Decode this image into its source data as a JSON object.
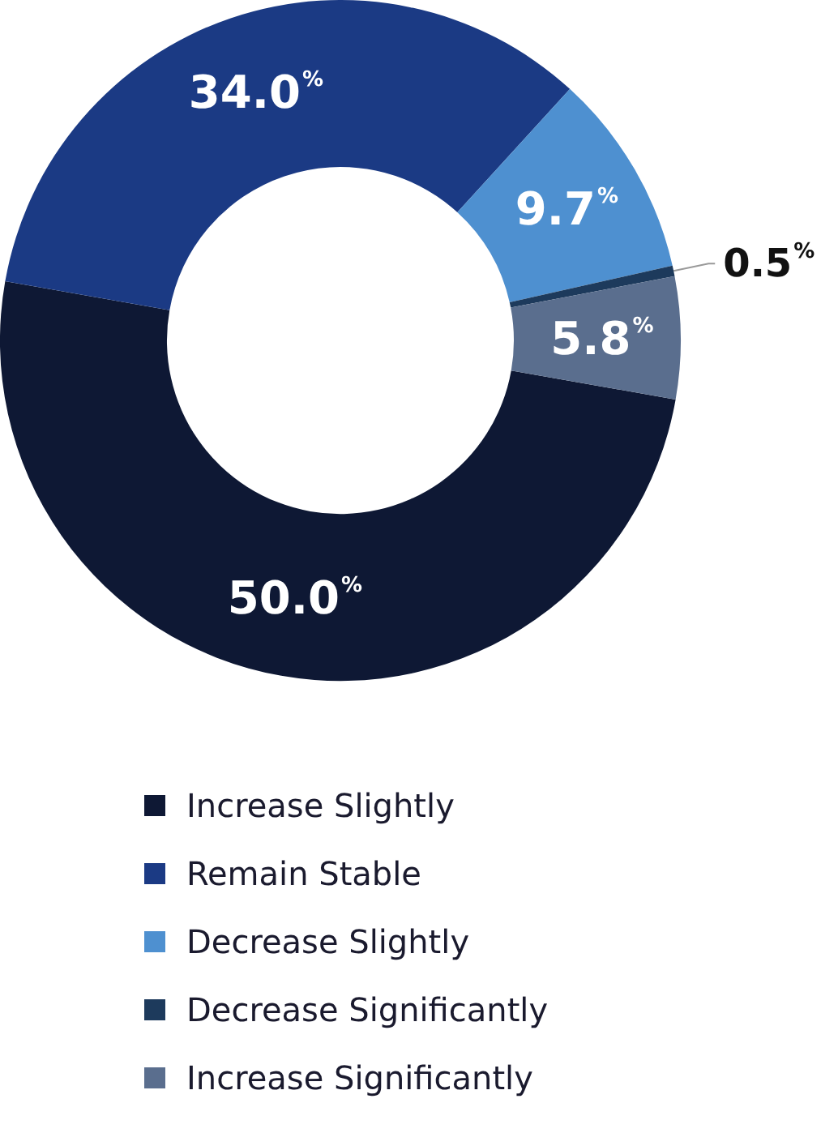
{
  "chart_data": {
    "type": "donut",
    "categories": [
      "Increase Slightly",
      "Remain Stable",
      "Decrease Slightly",
      "Decrease Significantly",
      "Increase Significantly"
    ],
    "values": [
      50.0,
      34.0,
      9.7,
      0.5,
      5.8
    ],
    "colors": [
      "#0e1834",
      "#1b3a84",
      "#4e90d0",
      "#1d3a5c",
      "#5a6e8e"
    ],
    "value_labels": [
      "50.0$^{%}$",
      "34.0$^{%}$",
      "9.7$^{%}$",
      "0.5$^{%}$",
      "5.8$^{%}$"
    ],
    "legend": "bottom"
  }
}
